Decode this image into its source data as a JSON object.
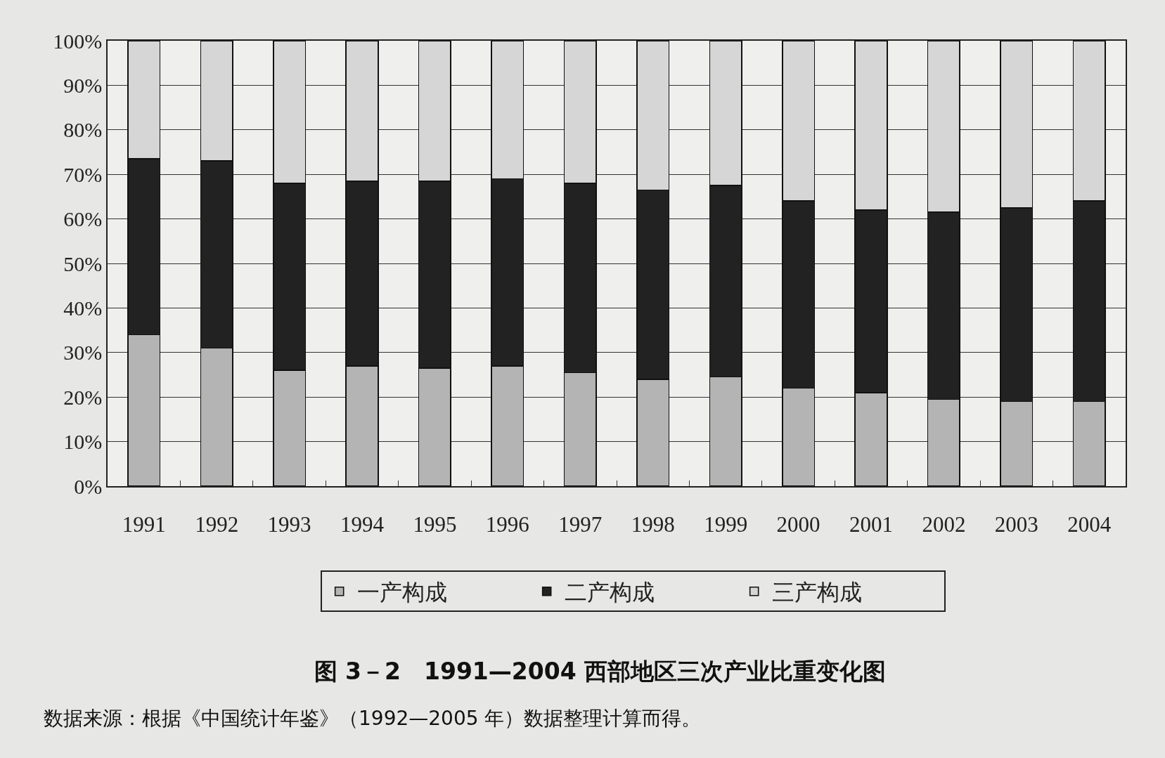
{
  "chart_data": {
    "type": "bar",
    "stacked": true,
    "title": "图 3－2　1991—2004 西部地区三次产业比重变化图",
    "categories": [
      "1991",
      "1992",
      "1993",
      "1994",
      "1995",
      "1996",
      "1997",
      "1998",
      "1999",
      "2000",
      "2001",
      "2002",
      "2003",
      "2004"
    ],
    "series": [
      {
        "name": "一产构成",
        "color": "#b4b4b4",
        "values": [
          34,
          31,
          26,
          27,
          26.5,
          27,
          25.5,
          24,
          24.5,
          22,
          21,
          19.5,
          19,
          19
        ]
      },
      {
        "name": "二产构成",
        "color": "#222222",
        "values": [
          39.5,
          42,
          42,
          41.5,
          42,
          42,
          42.5,
          42.5,
          43,
          42,
          41,
          42,
          43.5,
          45
        ]
      },
      {
        "name": "三产构成",
        "color": "#d6d6d6",
        "values": [
          26.5,
          27,
          32,
          31.5,
          31.5,
          31,
          32,
          33.5,
          32.5,
          36,
          38,
          38.5,
          37.5,
          36
        ]
      }
    ],
    "ylim": [
      0,
      100
    ],
    "yticks": [
      {
        "value": 0,
        "label": "0%"
      },
      {
        "value": 10,
        "label": "10%"
      },
      {
        "value": 20,
        "label": "20%"
      },
      {
        "value": 30,
        "label": "30%"
      },
      {
        "value": 40,
        "label": "40%"
      },
      {
        "value": 50,
        "label": "50%"
      },
      {
        "value": 60,
        "label": "60%"
      },
      {
        "value": 70,
        "label": "70%"
      },
      {
        "value": 80,
        "label": "80%"
      },
      {
        "value": 90,
        "label": "90%"
      },
      {
        "value": 100,
        "label": "100%"
      }
    ],
    "grid": "y",
    "legend": "bottom",
    "annotations": [
      "数据来源：根据《中国统计年鉴》（1992—2005 年）数据整理计算而得。"
    ]
  }
}
